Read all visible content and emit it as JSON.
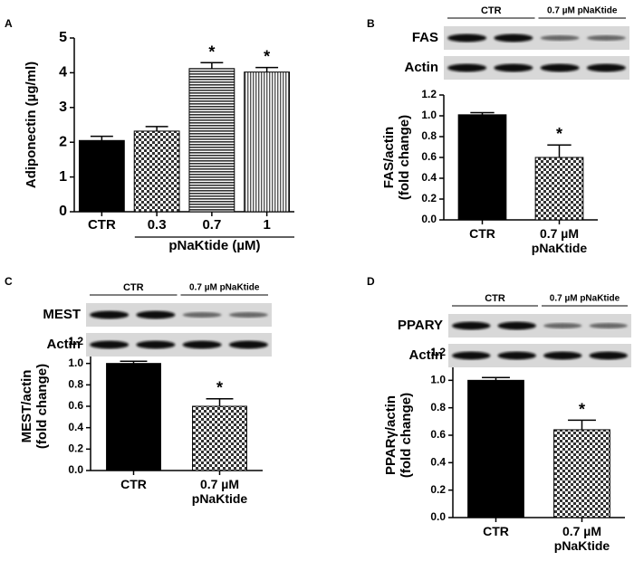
{
  "chart_data": [
    {
      "type": "bar",
      "panel": "A",
      "y_label": [
        "Adiponectin (µg/ml)"
      ],
      "categories": [
        "CTR",
        "0.3",
        "0.7",
        "1"
      ],
      "values": [
        2.05,
        2.32,
        4.12,
        4.02
      ],
      "errors": [
        0.12,
        0.13,
        0.17,
        0.13
      ],
      "patterns": [
        "solid",
        "checker",
        "horizontal",
        "vertical"
      ],
      "asterisks": [
        null,
        null,
        "*",
        "*"
      ],
      "group_label": "pNaKtide (µM)",
      "ylim": [
        0,
        5
      ],
      "yticks": [
        0,
        1,
        2,
        3,
        4,
        5
      ]
    },
    {
      "type": "bar",
      "panel": "B",
      "y_label": [
        "FAS/actin",
        "(fold change)"
      ],
      "blot": {
        "groups": [
          "CTR",
          "0.7 µM pNaKtide"
        ],
        "rows": [
          "FAS",
          "Actin"
        ]
      },
      "categories": [
        "CTR",
        "0.7 µM pNaKtide"
      ],
      "values": [
        1.01,
        0.6
      ],
      "errors": [
        0.02,
        0.12
      ],
      "patterns": [
        "solid",
        "checker"
      ],
      "asterisks": [
        null,
        "*"
      ],
      "ylim": [
        0,
        1.2
      ],
      "yticks": [
        {
          "value": 0,
          "label": "0.0"
        },
        0.2,
        0.4,
        0.6,
        0.8,
        {
          "value": 1,
          "label": "1.0"
        },
        1.2
      ]
    },
    {
      "type": "bar",
      "panel": "C",
      "y_label": [
        "MEST/actin",
        "(fold change)"
      ],
      "blot": {
        "groups": [
          "CTR",
          "0.7 µM pNaKtide"
        ],
        "rows": [
          "MEST",
          "Actin"
        ]
      },
      "categories": [
        "CTR",
        "0.7 µM pNaKtide"
      ],
      "values": [
        1.0,
        0.6
      ],
      "errors": [
        0.02,
        0.07
      ],
      "patterns": [
        "solid",
        "checker"
      ],
      "asterisks": [
        null,
        "*"
      ],
      "ylim": [
        0,
        1.2
      ],
      "yticks": [
        {
          "value": 0,
          "label": "0.0"
        },
        0.2,
        0.4,
        0.6,
        0.8,
        {
          "value": 1,
          "label": "1.0"
        },
        1.2
      ]
    },
    {
      "type": "bar",
      "panel": "D",
      "y_label": [
        "PPARγ/actin",
        "(fold change)"
      ],
      "blot": {
        "groups": [
          "CTR",
          "0.7 µM pNaKtide"
        ],
        "rows": [
          "PPARY",
          "Actin"
        ]
      },
      "categories": [
        "CTR",
        "0.7 µM pNaKtide"
      ],
      "values": [
        1.0,
        0.64
      ],
      "errors": [
        0.02,
        0.07
      ],
      "patterns": [
        "solid",
        "checker"
      ],
      "asterisks": [
        null,
        "*"
      ],
      "ylim": [
        0,
        1.2
      ],
      "yticks": [
        {
          "value": 0,
          "label": "0.0"
        },
        0.2,
        0.4,
        0.6,
        0.8,
        {
          "value": 1,
          "label": "1.0"
        },
        1.2
      ]
    }
  ]
}
